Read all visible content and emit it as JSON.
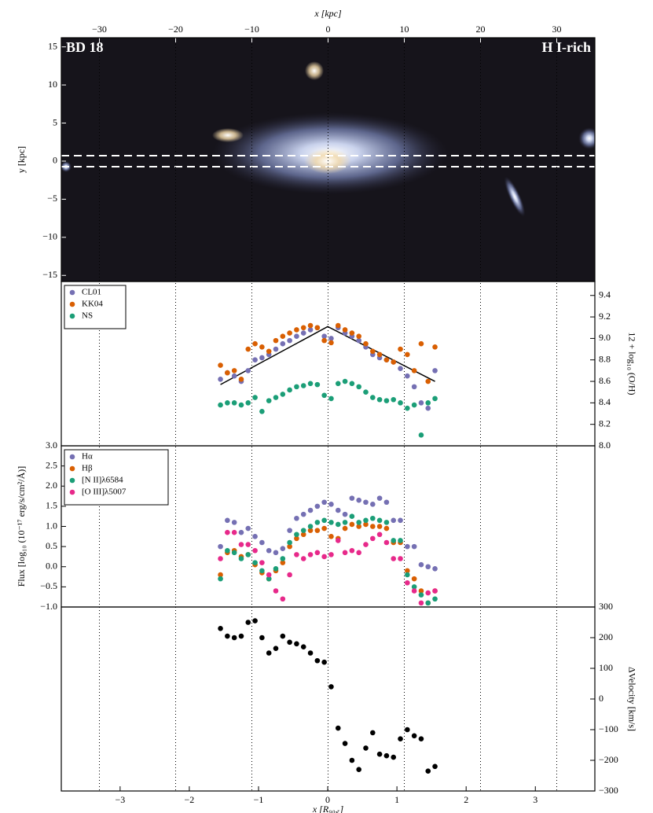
{
  "chart_data": [
    {
      "type": "image",
      "title": "BD 18",
      "annotation": "H I-rich",
      "xlabel": "x [kpc]",
      "xlim": [
        -35,
        35
      ],
      "xticks": [
        {
          "value": -30,
          "label": "−30"
        },
        {
          "value": -20,
          "label": "−20"
        },
        {
          "value": -10,
          "label": "−10"
        },
        0,
        10,
        20,
        30
      ],
      "xtick_side": "top",
      "grid": true,
      "ylabel": "y [kpc]",
      "ylim": [
        -15.8,
        16.2
      ],
      "ytick_side": "left",
      "yticks": [
        {
          "value": -15,
          "label": "−15"
        },
        {
          "value": -10,
          "label": "−10"
        },
        {
          "value": -5,
          "label": "−5"
        },
        0,
        5,
        10,
        15
      ]
    },
    {
      "type": "scatter",
      "ylabel": "12 + log₁₀ (O/H)",
      "xlim": [
        -3.85,
        3.86
      ],
      "ylim": [
        8.0,
        9.53
      ],
      "ytick_side": "right",
      "yticks": [
        {
          "value": 8,
          "label": "8.0"
        },
        8.2,
        8.4,
        8.6,
        8.8,
        {
          "value": 9,
          "label": "9.0"
        },
        9.2,
        9.4
      ],
      "legend": "upper left",
      "x": [
        -1.55,
        -1.45,
        -1.35,
        -1.25,
        -1.15,
        -1.05,
        -0.95,
        -0.85,
        -0.75,
        -0.65,
        -0.55,
        -0.45,
        -0.35,
        -0.25,
        -0.15,
        -0.05,
        0.05,
        0.15,
        0.25,
        0.35,
        0.45,
        0.55,
        0.65,
        0.75,
        0.85,
        0.95,
        1.05,
        1.15,
        1.25,
        1.35,
        1.45,
        1.55
      ],
      "series": [
        {
          "name": "CL01",
          "color": "#7570b3",
          "values": [
            8.62,
            8.68,
            8.65,
            8.6,
            8.7,
            8.8,
            8.82,
            8.85,
            8.9,
            8.95,
            8.98,
            9.02,
            9.05,
            9.08,
            9.1,
            9.02,
            9.0,
            9.1,
            9.05,
            9.02,
            8.98,
            8.92,
            8.85,
            8.82,
            8.8,
            8.78,
            8.72,
            8.65,
            8.55,
            8.4,
            8.35,
            8.7
          ]
        },
        {
          "name": "KK04",
          "color": "#d95f02",
          "values": [
            8.75,
            8.68,
            8.7,
            8.62,
            8.9,
            8.95,
            8.92,
            8.88,
            8.98,
            9.02,
            9.05,
            9.08,
            9.1,
            9.12,
            9.1,
            8.98,
            8.96,
            9.12,
            9.08,
            9.05,
            9.02,
            8.95,
            8.88,
            8.85,
            8.8,
            8.78,
            8.9,
            8.85,
            8.7,
            8.95,
            8.6,
            8.92
          ]
        },
        {
          "name": "NS",
          "color": "#1b9e77",
          "values": [
            8.38,
            8.4,
            8.4,
            8.38,
            8.4,
            8.45,
            8.32,
            8.42,
            8.45,
            8.48,
            8.52,
            8.55,
            8.56,
            8.58,
            8.57,
            8.47,
            8.44,
            8.58,
            8.6,
            8.58,
            8.55,
            8.5,
            8.45,
            8.43,
            8.42,
            8.43,
            8.4,
            8.35,
            8.38,
            8.1,
            8.4,
            8.44
          ]
        }
      ],
      "lines": [
        {
          "color": "#000000",
          "x": [
            -1.55,
            0,
            1.55
          ],
          "values": [
            8.57,
            9.11,
            8.6
          ]
        }
      ]
    },
    {
      "type": "scatter",
      "ylabel": "Flux [log₁₀ (10⁻¹⁷ erg/s/cm²/Å)]",
      "xlim": [
        -3.85,
        3.86
      ],
      "ylim": [
        -1,
        3
      ],
      "ytick_side": "left",
      "yticks": [
        {
          "value": -1,
          "label": "−1.0"
        },
        {
          "value": -0.5,
          "label": "−0.5"
        },
        {
          "value": 0,
          "label": "0.0"
        },
        0.5,
        {
          "value": 1,
          "label": "1.0"
        },
        1.5,
        {
          "value": 2,
          "label": "2.0"
        },
        2.5,
        {
          "value": 3,
          "label": "3.0"
        }
      ],
      "legend": "upper left",
      "x": [
        -1.55,
        -1.45,
        -1.35,
        -1.25,
        -1.15,
        -1.05,
        -0.95,
        -0.85,
        -0.75,
        -0.65,
        -0.55,
        -0.45,
        -0.35,
        -0.25,
        -0.15,
        -0.05,
        0.05,
        0.15,
        0.25,
        0.35,
        0.45,
        0.55,
        0.65,
        0.75,
        0.85,
        0.95,
        1.05,
        1.15,
        1.25,
        1.35,
        1.45,
        1.55
      ],
      "series": [
        {
          "name": "Hα",
          "color": "#7570b3",
          "values": [
            0.5,
            1.15,
            1.1,
            0.85,
            0.95,
            0.75,
            0.6,
            0.4,
            0.35,
            0.45,
            0.9,
            1.2,
            1.3,
            1.4,
            1.5,
            1.6,
            1.55,
            1.4,
            1.3,
            1.7,
            1.65,
            1.6,
            1.55,
            1.7,
            1.6,
            1.15,
            1.15,
            0.5,
            0.5,
            0.05,
            0.0,
            -0.05
          ]
        },
        {
          "name": "Hβ",
          "color": "#d95f02",
          "values": [
            -0.2,
            0.35,
            0.4,
            0.25,
            0.3,
            0.05,
            -0.15,
            -0.3,
            -0.1,
            0.1,
            0.5,
            0.7,
            0.8,
            0.9,
            0.9,
            0.95,
            0.75,
            0.7,
            0.95,
            1.05,
            1.0,
            1.05,
            1.0,
            1.0,
            0.95,
            0.6,
            0.6,
            -0.1,
            -0.3,
            -0.6,
            -0.9,
            -0.6
          ]
        },
        {
          "name": "[N II]λ6584",
          "color": "#1b9e77",
          "values": [
            -0.3,
            0.4,
            0.35,
            0.2,
            0.3,
            0.1,
            -0.1,
            -0.3,
            -0.05,
            0.2,
            0.6,
            0.8,
            0.9,
            1.0,
            1.1,
            1.15,
            1.1,
            1.05,
            1.1,
            1.25,
            1.1,
            1.15,
            1.2,
            1.15,
            1.1,
            0.65,
            0.65,
            -0.2,
            -0.5,
            -0.7,
            -0.9,
            -0.8
          ]
        },
        {
          "name": "[O III]λ5007",
          "color": "#e7298a",
          "values": [
            0.2,
            0.85,
            0.85,
            0.55,
            0.55,
            0.4,
            0.1,
            -0.2,
            -0.6,
            -0.8,
            -0.2,
            0.3,
            0.2,
            0.3,
            0.35,
            0.25,
            0.3,
            0.65,
            0.35,
            0.4,
            0.35,
            0.55,
            0.7,
            0.8,
            0.6,
            0.2,
            0.2,
            -0.4,
            -0.6,
            -0.9,
            -0.65,
            -0.6
          ]
        }
      ]
    },
    {
      "type": "scatter",
      "ylabel": "ΔVelocity [km/s]",
      "xlabel": "x [R₉₀,ᵣ]",
      "xlim": [
        -3.85,
        3.86
      ],
      "xtick_side": "bottom",
      "xticks": [
        {
          "value": -3,
          "label": "−3"
        },
        {
          "value": -2,
          "label": "−2"
        },
        {
          "value": -1,
          "label": "−1"
        },
        0,
        1,
        2,
        3
      ],
      "ylim": [
        -300,
        300
      ],
      "ytick_side": "right",
      "yticks": [
        {
          "value": -300,
          "label": "−300"
        },
        {
          "value": -200,
          "label": "−200"
        },
        {
          "value": -100,
          "label": "−100"
        },
        0,
        100,
        200,
        300
      ],
      "x": [
        -1.55,
        -1.45,
        -1.35,
        -1.25,
        -1.15,
        -1.05,
        -0.95,
        -0.85,
        -0.75,
        -0.65,
        -0.55,
        -0.45,
        -0.35,
        -0.25,
        -0.15,
        -0.05,
        0.05,
        0.15,
        0.25,
        0.35,
        0.45,
        0.55,
        0.65,
        0.75,
        0.85,
        0.95,
        1.05,
        1.15,
        1.25,
        1.35,
        1.45,
        1.55
      ],
      "series": [
        {
          "color": "#000000",
          "values": [
            230,
            205,
            200,
            205,
            250,
            255,
            200,
            150,
            165,
            205,
            185,
            180,
            170,
            150,
            125,
            120,
            40,
            -95,
            -145,
            -200,
            -230,
            -160,
            -110,
            -180,
            -185,
            -190,
            -130,
            -100,
            -120,
            -130,
            -235,
            -220
          ]
        }
      ]
    }
  ]
}
